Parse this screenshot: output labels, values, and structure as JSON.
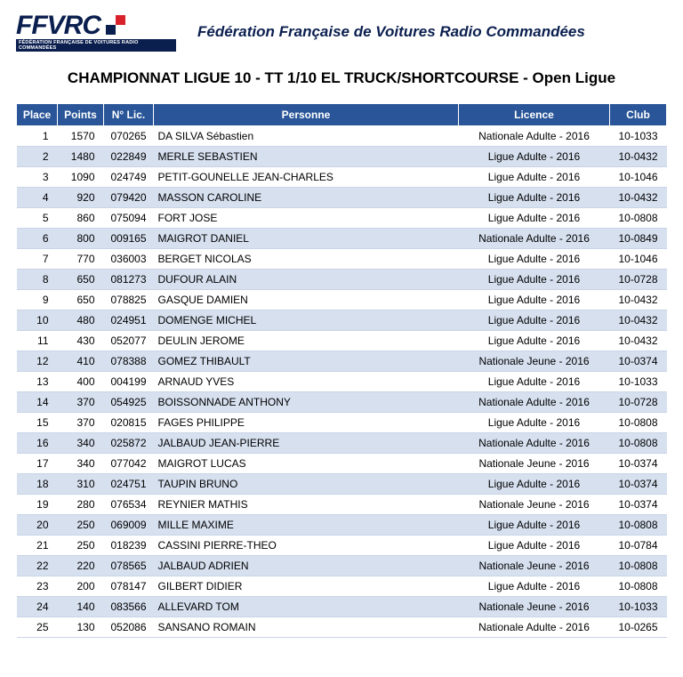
{
  "header": {
    "logo_text": "FFVRC",
    "logo_subtext": "FÉDÉRATION FRANÇAISE DE VOITURES RADIO COMMANDÉES",
    "federation": "Fédération Française de Voitures Radio Commandées"
  },
  "title": "CHAMPIONNAT LIGUE 10 - TT 1/10 EL TRUCK/SHORTCOURSE - Open Ligue",
  "columns": {
    "place": "Place",
    "points": "Points",
    "lic": "N° Lic.",
    "personne": "Personne",
    "licence": "Licence",
    "club": "Club"
  },
  "rows": [
    {
      "place": "1",
      "points": "1570",
      "lic": "070265",
      "personne": "DA SILVA Sébastien",
      "licence": "Nationale Adulte - 2016",
      "club": "10-1033"
    },
    {
      "place": "2",
      "points": "1480",
      "lic": "022849",
      "personne": "MERLE SEBASTIEN",
      "licence": "Ligue Adulte - 2016",
      "club": "10-0432"
    },
    {
      "place": "3",
      "points": "1090",
      "lic": "024749",
      "personne": "PETIT-GOUNELLE JEAN-CHARLES",
      "licence": "Ligue Adulte - 2016",
      "club": "10-1046"
    },
    {
      "place": "4",
      "points": "920",
      "lic": "079420",
      "personne": "MASSON CAROLINE",
      "licence": "Ligue Adulte - 2016",
      "club": "10-0432"
    },
    {
      "place": "5",
      "points": "860",
      "lic": "075094",
      "personne": "FORT JOSE",
      "licence": "Ligue Adulte - 2016",
      "club": "10-0808"
    },
    {
      "place": "6",
      "points": "800",
      "lic": "009165",
      "personne": "MAIGROT DANIEL",
      "licence": "Nationale Adulte - 2016",
      "club": "10-0849"
    },
    {
      "place": "7",
      "points": "770",
      "lic": "036003",
      "personne": "BERGET NICOLAS",
      "licence": "Ligue Adulte - 2016",
      "club": "10-1046"
    },
    {
      "place": "8",
      "points": "650",
      "lic": "081273",
      "personne": "DUFOUR ALAIN",
      "licence": "Ligue Adulte - 2016",
      "club": "10-0728"
    },
    {
      "place": "9",
      "points": "650",
      "lic": "078825",
      "personne": "GASQUE DAMIEN",
      "licence": "Ligue Adulte - 2016",
      "club": "10-0432"
    },
    {
      "place": "10",
      "points": "480",
      "lic": "024951",
      "personne": "DOMENGE MICHEL",
      "licence": "Ligue Adulte - 2016",
      "club": "10-0432"
    },
    {
      "place": "11",
      "points": "430",
      "lic": "052077",
      "personne": "DEULIN JEROME",
      "licence": "Ligue Adulte - 2016",
      "club": "10-0432"
    },
    {
      "place": "12",
      "points": "410",
      "lic": "078388",
      "personne": "GOMEZ THIBAULT",
      "licence": "Nationale Jeune - 2016",
      "club": "10-0374"
    },
    {
      "place": "13",
      "points": "400",
      "lic": "004199",
      "personne": "ARNAUD YVES",
      "licence": "Ligue Adulte - 2016",
      "club": "10-1033"
    },
    {
      "place": "14",
      "points": "370",
      "lic": "054925",
      "personne": "BOISSONNADE ANTHONY",
      "licence": "Nationale Adulte - 2016",
      "club": "10-0728"
    },
    {
      "place": "15",
      "points": "370",
      "lic": "020815",
      "personne": "FAGES PHILIPPE",
      "licence": "Ligue Adulte - 2016",
      "club": "10-0808"
    },
    {
      "place": "16",
      "points": "340",
      "lic": "025872",
      "personne": "JALBAUD JEAN-PIERRE",
      "licence": "Nationale Adulte - 2016",
      "club": "10-0808"
    },
    {
      "place": "17",
      "points": "340",
      "lic": "077042",
      "personne": "MAIGROT LUCAS",
      "licence": "Nationale Jeune - 2016",
      "club": "10-0374"
    },
    {
      "place": "18",
      "points": "310",
      "lic": "024751",
      "personne": "TAUPIN BRUNO",
      "licence": "Ligue Adulte - 2016",
      "club": "10-0374"
    },
    {
      "place": "19",
      "points": "280",
      "lic": "076534",
      "personne": "REYNIER MATHIS",
      "licence": "Nationale Jeune - 2016",
      "club": "10-0374"
    },
    {
      "place": "20",
      "points": "250",
      "lic": "069009",
      "personne": "MILLE MAXIME",
      "licence": "Ligue Adulte - 2016",
      "club": "10-0808"
    },
    {
      "place": "21",
      "points": "250",
      "lic": "018239",
      "personne": "CASSINI PIERRE-THEO",
      "licence": "Ligue Adulte - 2016",
      "club": "10-0784"
    },
    {
      "place": "22",
      "points": "220",
      "lic": "078565",
      "personne": "JALBAUD ADRIEN",
      "licence": "Nationale Jeune - 2016",
      "club": "10-0808"
    },
    {
      "place": "23",
      "points": "200",
      "lic": "078147",
      "personne": "GILBERT DIDIER",
      "licence": "Ligue Adulte - 2016",
      "club": "10-0808"
    },
    {
      "place": "24",
      "points": "140",
      "lic": "083566",
      "personne": "ALLEVARD TOM",
      "licence": "Nationale Jeune - 2016",
      "club": "10-1033"
    },
    {
      "place": "25",
      "points": "130",
      "lic": "052086",
      "personne": "SANSANO ROMAIN",
      "licence": "Nationale Adulte - 2016",
      "club": "10-0265"
    }
  ],
  "style": {
    "header_bg": "#2a5699",
    "header_fg": "#ffffff",
    "row_even_bg": "#d6e0ef",
    "row_odd_bg": "#ffffff",
    "border_color": "#c9d4e6",
    "brand_color": "#0b1f4f",
    "accent_color": "#d9212b",
    "font_size_body": 12,
    "font_size_title": 17
  }
}
